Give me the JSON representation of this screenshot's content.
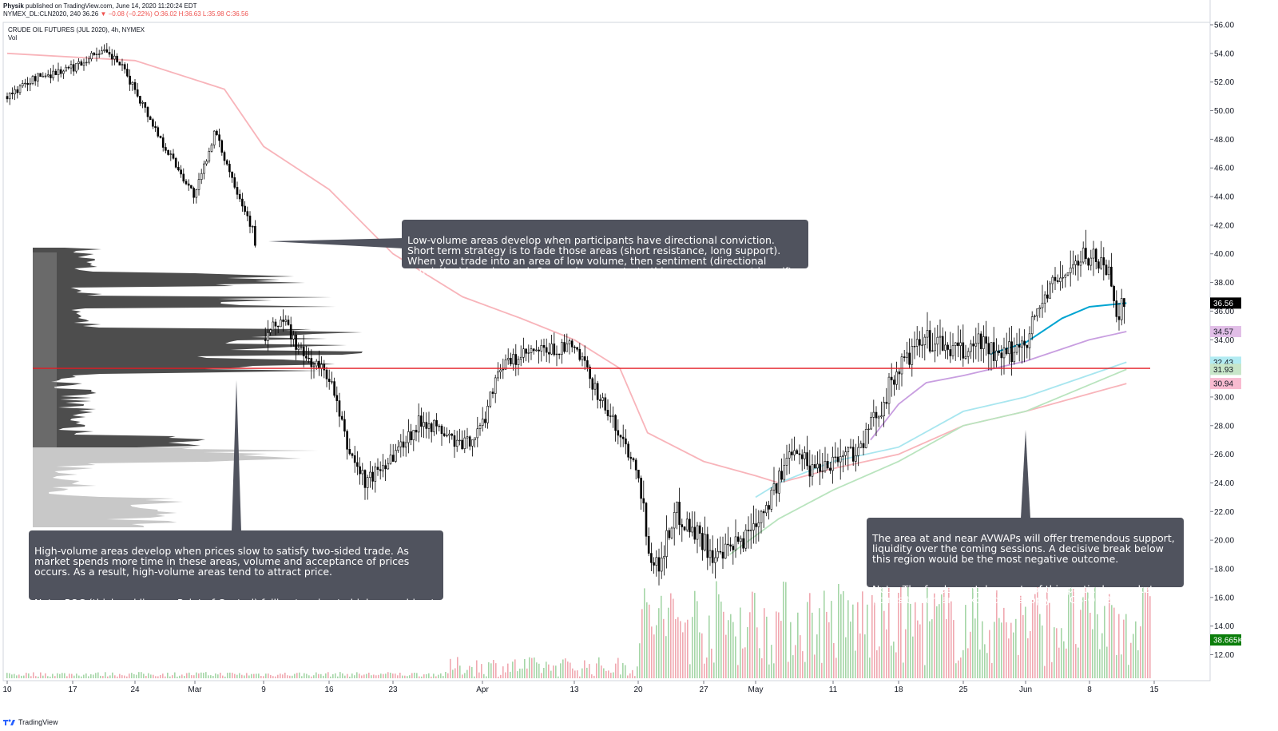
{
  "header": {
    "publisher": "Physik",
    "published_line": "published on TradingView.com, June 14, 2020 11:20:24 EDT",
    "symbol": "NYMEX_DL:CLN2020, 240",
    "last": "36.26",
    "change": "▼ −0.08 (−0.22%)",
    "ohlc": "O:36.02 H:36.63 L:35.98 C:36.56",
    "legend_title": "CRUDE OIL FUTURES (JUL 2020), 4h, NYMEX",
    "legend_vol": "Vol"
  },
  "footer": {
    "brand": "TradingView"
  },
  "notes": {
    "low_volume": "Low-volume areas develop when participants have directional conviction. Short term strategy is to fade those areas (short resistance, long support). When you trade into an area of low volume, then sentiment (directional conviction) has changed. Once prices penetrate this area, movement is swift.",
    "high_volume_1": "High-volume areas develop when prices slow to satisfy two-sided trade. As market spends more time in these areas, volume and acceptance of prices occurs. As a result, high-volume areas tend to attract price.",
    "high_volume_2": "Note: POC (thick red line, or Point of Control) failing to migrate higher would not point to improving trade facilitation and acceptance of higher prices.",
    "avwap_1": "The area at and near AVWAPs will offer tremendous support, liquidity over the coming sessions. A decisive break below this region would be the most negative outcome.",
    "avwap_2": "Note: The fundamental aspects of this particular market points to demand exceeding supply by Q3-Q4 2020."
  },
  "chart_data": {
    "type": "candlestick",
    "title": "CRUDE OIL FUTURES (JUL 2020), 4h, NYMEX",
    "y_axis": {
      "min": 10,
      "max": 56,
      "ticks": [
        "56.00",
        "54.00",
        "52.00",
        "50.00",
        "48.00",
        "46.00",
        "44.00",
        "42.00",
        "40.00",
        "38.00",
        "36.00",
        "34.00",
        "32.00",
        "30.00",
        "28.00",
        "26.00",
        "24.00",
        "22.00",
        "20.00",
        "18.00",
        "16.00",
        "14.00",
        "12.00"
      ]
    },
    "x_axis": {
      "ticks": [
        "10",
        "17",
        "24",
        "Mar",
        "9",
        "16",
        "23",
        "Apr",
        "13",
        "20",
        "27",
        "May",
        "11",
        "18",
        "25",
        "Jun",
        "8",
        "15"
      ]
    },
    "price_badges": [
      {
        "label": "36.56",
        "value": 36.56,
        "color": "#000000"
      },
      {
        "label": "34.57",
        "value": 34.57,
        "color": "#e1bee7"
      },
      {
        "label": "32.43",
        "value": 32.43,
        "color": "#b2ebf2"
      },
      {
        "label": "31.93",
        "value": 31.93,
        "color": "#c8e6c9"
      },
      {
        "label": "30.94",
        "value": 30.94,
        "color": "#f8bbd0"
      },
      {
        "label": "38.665K",
        "value": 13.0,
        "color": "#0a7d0a"
      }
    ],
    "poc": {
      "price": 32.0,
      "color": "#e31b23"
    },
    "price_path": [
      [
        "2020-02-10",
        51.0
      ],
      [
        "2020-02-13",
        52.3
      ],
      [
        "2020-02-17",
        53.0
      ],
      [
        "2020-02-20",
        54.2
      ],
      [
        "2020-02-22",
        53.5
      ],
      [
        "2020-02-24",
        51.5
      ],
      [
        "2020-02-27",
        48.0
      ],
      [
        "2020-03-02",
        44.0
      ],
      [
        "2020-03-04",
        48.5
      ],
      [
        "2020-03-06",
        45.0
      ],
      [
        "2020-03-08",
        41.5
      ],
      [
        "2020-03-09",
        34.0
      ],
      [
        "2020-03-11",
        35.5
      ],
      [
        "2020-03-13",
        33.0
      ],
      [
        "2020-03-16",
        31.5
      ],
      [
        "2020-03-18",
        26.5
      ],
      [
        "2020-03-20",
        24.0
      ],
      [
        "2020-03-23",
        26.0
      ],
      [
        "2020-03-26",
        28.5
      ],
      [
        "2020-03-30",
        26.5
      ],
      [
        "2020-04-01",
        28.0
      ],
      [
        "2020-04-03",
        32.0
      ],
      [
        "2020-04-07",
        33.0
      ],
      [
        "2020-04-13",
        33.5
      ],
      [
        "2020-04-15",
        31.0
      ],
      [
        "2020-04-17",
        28.5
      ],
      [
        "2020-04-20",
        25.0
      ],
      [
        "2020-04-21",
        20.0
      ],
      [
        "2020-04-22",
        18.0
      ],
      [
        "2020-04-24",
        22.0
      ],
      [
        "2020-04-27",
        20.0
      ],
      [
        "2020-04-28",
        18.5
      ],
      [
        "2020-04-30",
        20.0
      ],
      [
        "2020-05-04",
        24.0
      ],
      [
        "2020-05-06",
        27.0
      ],
      [
        "2020-05-08",
        25.0
      ],
      [
        "2020-05-14",
        26.5
      ],
      [
        "2020-05-18",
        32.0
      ],
      [
        "2020-05-21",
        34.0
      ],
      [
        "2020-05-25",
        33.0
      ],
      [
        "2020-05-27",
        34.0
      ],
      [
        "2020-05-29",
        32.5
      ],
      [
        "2020-06-01",
        34.0
      ],
      [
        "2020-06-03",
        37.0
      ],
      [
        "2020-06-05",
        38.5
      ],
      [
        "2020-06-08",
        40.0
      ],
      [
        "2020-06-10",
        39.0
      ],
      [
        "2020-06-11",
        36.0
      ],
      [
        "2020-06-12",
        36.56
      ]
    ],
    "series": [
      {
        "name": "AVWAP 1",
        "color": "#f8b4ba",
        "points": [
          [
            "2020-02-10",
            54.0
          ],
          [
            "2020-02-24",
            53.5
          ],
          [
            "2020-03-05",
            51.5
          ],
          [
            "2020-03-09",
            47.5
          ],
          [
            "2020-03-16",
            44.5
          ],
          [
            "2020-03-23",
            40.0
          ],
          [
            "2020-03-30",
            37.0
          ],
          [
            "2020-04-06",
            35.5
          ],
          [
            "2020-04-13",
            34.0
          ],
          [
            "2020-04-18",
            32.0
          ],
          [
            "2020-04-21",
            27.5
          ],
          [
            "2020-04-27",
            25.5
          ],
          [
            "2020-05-01",
            24.5
          ],
          [
            "2020-05-04",
            24.0
          ],
          [
            "2020-05-11",
            25.0
          ],
          [
            "2020-05-18",
            26.0
          ],
          [
            "2020-05-25",
            28.0
          ],
          [
            "2020-06-01",
            29.0
          ],
          [
            "2020-06-12",
            30.94
          ]
        ]
      },
      {
        "name": "AVWAP 2",
        "color": "#b9e4be",
        "points": [
          [
            "2020-04-29",
            19.0
          ],
          [
            "2020-05-04",
            21.5
          ],
          [
            "2020-05-11",
            23.5
          ],
          [
            "2020-05-18",
            25.5
          ],
          [
            "2020-05-25",
            28.0
          ],
          [
            "2020-06-01",
            29.0
          ],
          [
            "2020-06-12",
            31.93
          ]
        ]
      },
      {
        "name": "AVWAP 3",
        "color": "#a8e6ef",
        "points": [
          [
            "2020-05-01",
            23.0
          ],
          [
            "2020-05-04",
            24.0
          ],
          [
            "2020-05-11",
            25.5
          ],
          [
            "2020-05-18",
            26.5
          ],
          [
            "2020-05-25",
            29.0
          ],
          [
            "2020-06-01",
            30.0
          ],
          [
            "2020-06-12",
            32.43
          ]
        ]
      },
      {
        "name": "AVWAP 4",
        "color": "#c89ee0",
        "points": [
          [
            "2020-05-15",
            27.0
          ],
          [
            "2020-05-18",
            29.5
          ],
          [
            "2020-05-21",
            31.0
          ],
          [
            "2020-05-25",
            31.5
          ],
          [
            "2020-06-01",
            32.5
          ],
          [
            "2020-06-08",
            34.0
          ],
          [
            "2020-06-12",
            34.57
          ]
        ]
      },
      {
        "name": "AVWAP 5",
        "color": "#00a4d1",
        "points": [
          [
            "2020-05-28",
            33.0
          ],
          [
            "2020-06-01",
            33.8
          ],
          [
            "2020-06-05",
            35.5
          ],
          [
            "2020-06-08",
            36.3
          ],
          [
            "2020-06-12",
            36.56
          ]
        ]
      }
    ]
  }
}
